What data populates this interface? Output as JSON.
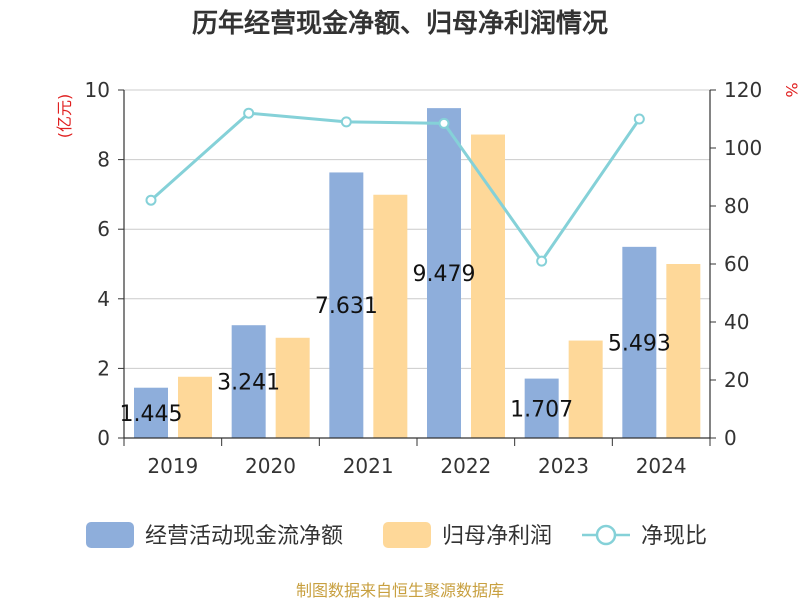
{
  "chart_data": {
    "type": "bar",
    "title": "历年经营现金净额、归母净利润情况",
    "categories": [
      "2019",
      "2020",
      "2021",
      "2022",
      "2023",
      "2024"
    ],
    "y_left_unit": "(亿元)",
    "y_right_unit": "%",
    "y_left_ticks": [
      "0",
      "2",
      "4",
      "6",
      "8",
      "10"
    ],
    "y_right_ticks": [
      "0",
      "20",
      "40",
      "60",
      "80",
      "100",
      "120"
    ],
    "ylim_left": [
      0,
      10
    ],
    "ylim_right": [
      0,
      120
    ],
    "grid": true,
    "legend_position": "bottom",
    "series": [
      {
        "name": "经营活动现金流净额",
        "kind": "bar",
        "axis": "left",
        "color": "#8eaedb",
        "values": [
          1.445,
          3.241,
          7.631,
          9.479,
          1.707,
          5.493
        ],
        "labels": [
          "1.445",
          "3.241",
          "7.631",
          "9.479",
          "1.707",
          "5.493"
        ]
      },
      {
        "name": "归母净利润",
        "kind": "bar",
        "axis": "left",
        "color": "#fed899",
        "values": [
          1.76,
          2.88,
          6.99,
          8.72,
          2.8,
          5.0
        ]
      },
      {
        "name": "净现比",
        "kind": "line",
        "axis": "right",
        "color": "#85d1d8",
        "values": [
          82,
          112,
          109,
          108.5,
          61,
          110
        ]
      }
    ],
    "source": "制图数据来自恒生聚源数据库"
  }
}
